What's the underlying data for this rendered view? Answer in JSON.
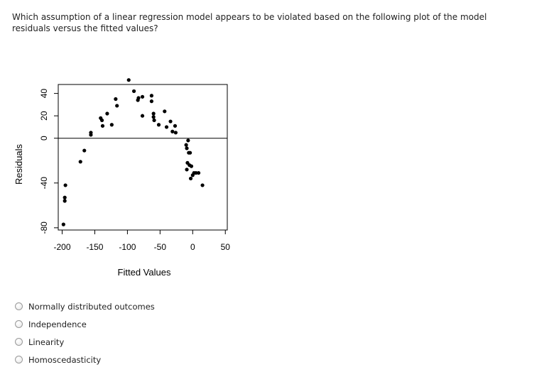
{
  "question": "Which assumption of a linear regression model appears to be violated based on the following plot of the model residuals versus the fitted values?",
  "options": [
    {
      "label": "Normally distributed outcomes"
    },
    {
      "label": "Independence"
    },
    {
      "label": "Linearity"
    },
    {
      "label": "Homoscedasticity"
    }
  ],
  "chart_data": {
    "type": "scatter",
    "title": "",
    "xlabel": "Fitted Values",
    "ylabel": "Residuals",
    "xlim": [
      -206,
      53
    ],
    "ylim": [
      -82,
      48
    ],
    "xticks": [
      -200,
      -150,
      -100,
      -50,
      0,
      50
    ],
    "yticks": [
      -80,
      -40,
      0,
      20,
      40
    ],
    "reference_line": {
      "y": 0
    },
    "grid": false,
    "points": [
      [
        -198,
        -77
      ],
      [
        -195,
        -42
      ],
      [
        -196,
        -53
      ],
      [
        -196,
        -56
      ],
      [
        -172,
        -21
      ],
      [
        -166,
        -11
      ],
      [
        -156,
        3
      ],
      [
        -156,
        5
      ],
      [
        -141,
        18
      ],
      [
        -139,
        16
      ],
      [
        -138,
        11
      ],
      [
        -131,
        22
      ],
      [
        -124,
        12
      ],
      [
        -118,
        35
      ],
      [
        -116,
        29
      ],
      [
        -98,
        52
      ],
      [
        -90,
        42
      ],
      [
        -84,
        34
      ],
      [
        -83,
        36
      ],
      [
        -77,
        37
      ],
      [
        -77,
        20
      ],
      [
        -63,
        38
      ],
      [
        -63,
        33
      ],
      [
        -60,
        22
      ],
      [
        -60,
        19
      ],
      [
        -59,
        16
      ],
      [
        -52,
        12
      ],
      [
        -43,
        24
      ],
      [
        -40,
        10
      ],
      [
        -34,
        15
      ],
      [
        -31,
        6
      ],
      [
        -27,
        11
      ],
      [
        -26,
        5
      ],
      [
        -10,
        -6
      ],
      [
        -9,
        -9
      ],
      [
        -7,
        -2
      ],
      [
        -6,
        -13
      ],
      [
        -4,
        -13
      ],
      [
        -8,
        -22
      ],
      [
        -5,
        -24
      ],
      [
        -2,
        -25
      ],
      [
        -9,
        -28
      ],
      [
        0,
        -33
      ],
      [
        2,
        -31
      ],
      [
        5,
        -31
      ],
      [
        9,
        -31
      ],
      [
        15,
        -42
      ],
      [
        -3,
        -36
      ]
    ]
  }
}
